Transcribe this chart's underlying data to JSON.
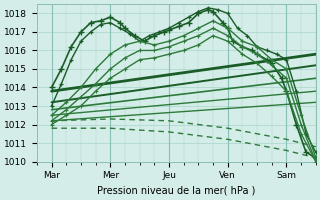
{
  "xlabel": "Pression niveau de la mer( hPa )",
  "ylim": [
    1010,
    1018.5
  ],
  "xlim": [
    0,
    114
  ],
  "background_color": "#d4ede8",
  "grid_color": "#b0d8ce",
  "tick_labels": [
    "Mar",
    "Mer",
    "Jeu",
    "Ven",
    "Sam"
  ],
  "tick_positions": [
    6,
    30,
    54,
    78,
    102
  ],
  "vline_positions": [
    6,
    30,
    54,
    78,
    102
  ],
  "yticks": [
    1010,
    1011,
    1012,
    1013,
    1014,
    1015,
    1016,
    1017,
    1018
  ],
  "dark_green": "#1a5c28",
  "mid_green": "#2d7a3a",
  "series_with_markers": [
    {
      "x": [
        6,
        10,
        14,
        18,
        22,
        26,
        30,
        34,
        36,
        40,
        44,
        48,
        52,
        54,
        58,
        62,
        66,
        70,
        72,
        76,
        78,
        80,
        84,
        88,
        90,
        94,
        96,
        100,
        102,
        106,
        110,
        114
      ],
      "y": [
        1014.0,
        1015.0,
        1016.2,
        1017.0,
        1017.5,
        1017.6,
        1017.8,
        1017.5,
        1017.2,
        1016.8,
        1016.5,
        1016.8,
        1017.0,
        1017.1,
        1017.3,
        1017.5,
        1018.0,
        1018.2,
        1018.1,
        1017.5,
        1017.2,
        1016.5,
        1016.2,
        1016.0,
        1015.8,
        1015.5,
        1015.3,
        1014.5,
        1013.8,
        1012.0,
        1010.5,
        1010.2
      ],
      "style": "-",
      "marker": "+",
      "lw": 1.2,
      "ms": 4,
      "color": "#1a5c28",
      "mew": 1.0
    },
    {
      "x": [
        6,
        10,
        14,
        18,
        22,
        26,
        30,
        34,
        38,
        42,
        46,
        50,
        54,
        58,
        62,
        66,
        70,
        74,
        78,
        82,
        86,
        90,
        94,
        98,
        102,
        106,
        110,
        114
      ],
      "y": [
        1013.0,
        1014.2,
        1015.5,
        1016.5,
        1017.0,
        1017.4,
        1017.5,
        1017.2,
        1016.9,
        1016.5,
        1016.8,
        1017.0,
        1017.2,
        1017.5,
        1017.8,
        1018.1,
        1018.3,
        1018.2,
        1018.0,
        1017.2,
        1016.8,
        1016.2,
        1016.0,
        1015.8,
        1015.5,
        1013.8,
        1011.5,
        1010.5
      ],
      "style": "-",
      "marker": "+",
      "lw": 1.0,
      "ms": 3,
      "color": "#1a5c28",
      "mew": 0.9
    },
    {
      "x": [
        6,
        12,
        18,
        24,
        30,
        36,
        42,
        48,
        54,
        60,
        66,
        72,
        78,
        84,
        90,
        96,
        102,
        108,
        114
      ],
      "y": [
        1012.5,
        1013.2,
        1014.0,
        1015.0,
        1015.8,
        1016.3,
        1016.5,
        1016.3,
        1016.5,
        1016.8,
        1017.2,
        1017.6,
        1017.2,
        1016.5,
        1016.2,
        1015.5,
        1015.0,
        1012.5,
        1010.2
      ],
      "style": "-",
      "marker": "+",
      "lw": 1.0,
      "ms": 3,
      "color": "#2d7a3a",
      "mew": 0.9
    },
    {
      "x": [
        6,
        12,
        18,
        24,
        30,
        36,
        42,
        48,
        54,
        60,
        66,
        72,
        78,
        84,
        90,
        96,
        102,
        108,
        114
      ],
      "y": [
        1012.2,
        1012.8,
        1013.5,
        1014.2,
        1015.0,
        1015.6,
        1016.0,
        1016.0,
        1016.2,
        1016.5,
        1016.8,
        1017.2,
        1016.8,
        1016.2,
        1015.8,
        1015.2,
        1014.5,
        1012.0,
        1010.0
      ],
      "style": "-",
      "marker": "+",
      "lw": 1.0,
      "ms": 3,
      "color": "#2d7a3a",
      "mew": 0.8
    },
    {
      "x": [
        6,
        12,
        18,
        24,
        30,
        36,
        42,
        48,
        54,
        60,
        66,
        72,
        78,
        84,
        90,
        96,
        102,
        108,
        114
      ],
      "y": [
        1012.0,
        1012.5,
        1013.0,
        1013.8,
        1014.5,
        1015.0,
        1015.5,
        1015.6,
        1015.8,
        1016.0,
        1016.3,
        1016.8,
        1016.5,
        1015.8,
        1015.3,
        1014.6,
        1013.8,
        1011.5,
        1010.0
      ],
      "style": "-",
      "marker": "+",
      "lw": 1.0,
      "ms": 3,
      "color": "#2d7a3a",
      "mew": 0.8
    }
  ],
  "straight_lines": [
    {
      "x": [
        6,
        114
      ],
      "y": [
        1013.8,
        1015.8
      ],
      "style": "-",
      "lw": 2.0,
      "color": "#1a5c28"
    },
    {
      "x": [
        6,
        114
      ],
      "y": [
        1013.2,
        1015.2
      ],
      "style": "-",
      "lw": 1.4,
      "color": "#1a5c28"
    },
    {
      "x": [
        6,
        114
      ],
      "y": [
        1012.8,
        1014.5
      ],
      "style": "-",
      "lw": 1.2,
      "color": "#2d7a3a"
    },
    {
      "x": [
        6,
        114
      ],
      "y": [
        1012.5,
        1013.8
      ],
      "style": "-",
      "lw": 1.0,
      "color": "#2d7a3a"
    },
    {
      "x": [
        6,
        114
      ],
      "y": [
        1012.2,
        1013.2
      ],
      "style": "-",
      "lw": 1.0,
      "color": "#2d7a3a"
    }
  ],
  "dashed_lines": [
    {
      "x": [
        6,
        30,
        54,
        78,
        102,
        114
      ],
      "y": [
        1012.2,
        1012.3,
        1012.2,
        1011.8,
        1011.2,
        1010.8
      ],
      "style": "--",
      "lw": 1.0,
      "color": "#2d7a3a",
      "dashes": [
        4,
        3
      ]
    },
    {
      "x": [
        6,
        30,
        54,
        78,
        102,
        114
      ],
      "y": [
        1011.8,
        1011.8,
        1011.6,
        1011.2,
        1010.6,
        1010.2
      ],
      "style": "--",
      "lw": 1.0,
      "color": "#2d7a3a",
      "dashes": [
        4,
        3
      ]
    }
  ]
}
